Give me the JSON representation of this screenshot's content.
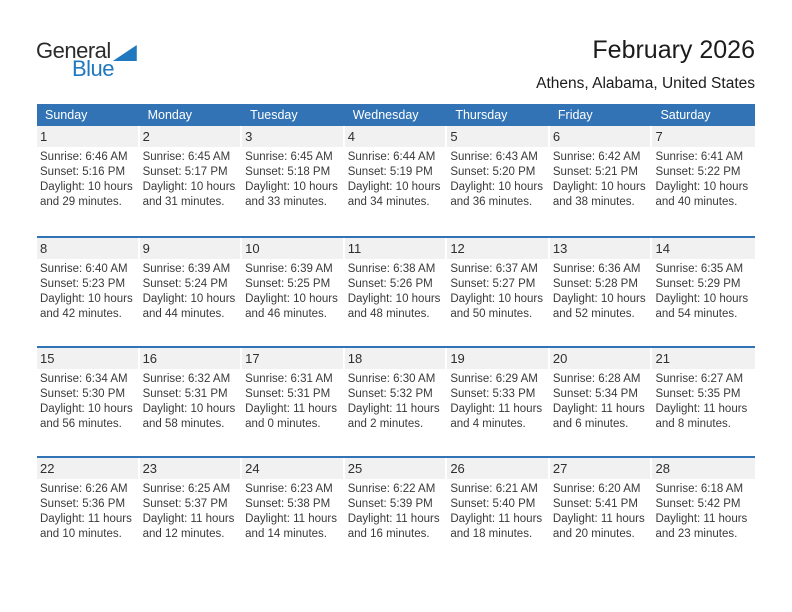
{
  "logo": {
    "text_general": "General",
    "text_blue": "Blue",
    "triangle_icon": "blue-right-triangle",
    "blue_color": "#2079BF",
    "dark_color": "#2B2B2B"
  },
  "header": {
    "title": "February 2026",
    "subtitle": "Athens, Alabama, United States"
  },
  "colors": {
    "header_blue": "#3273B5",
    "row_separator_blue": "#3273B5",
    "day_band_gray": "#F1F1F1",
    "body_text": "#3A3A3A"
  },
  "calendar": {
    "day_headers": [
      "Sunday",
      "Monday",
      "Tuesday",
      "Wednesday",
      "Thursday",
      "Friday",
      "Saturday"
    ],
    "weeks": [
      [
        {
          "day": "1",
          "sunrise": "Sunrise: 6:46 AM",
          "sunset": "Sunset: 5:16 PM",
          "daylight": "Daylight: 10 hours and 29 minutes."
        },
        {
          "day": "2",
          "sunrise": "Sunrise: 6:45 AM",
          "sunset": "Sunset: 5:17 PM",
          "daylight": "Daylight: 10 hours and 31 minutes."
        },
        {
          "day": "3",
          "sunrise": "Sunrise: 6:45 AM",
          "sunset": "Sunset: 5:18 PM",
          "daylight": "Daylight: 10 hours and 33 minutes."
        },
        {
          "day": "4",
          "sunrise": "Sunrise: 6:44 AM",
          "sunset": "Sunset: 5:19 PM",
          "daylight": "Daylight: 10 hours and 34 minutes."
        },
        {
          "day": "5",
          "sunrise": "Sunrise: 6:43 AM",
          "sunset": "Sunset: 5:20 PM",
          "daylight": "Daylight: 10 hours and 36 minutes."
        },
        {
          "day": "6",
          "sunrise": "Sunrise: 6:42 AM",
          "sunset": "Sunset: 5:21 PM",
          "daylight": "Daylight: 10 hours and 38 minutes."
        },
        {
          "day": "7",
          "sunrise": "Sunrise: 6:41 AM",
          "sunset": "Sunset: 5:22 PM",
          "daylight": "Daylight: 10 hours and 40 minutes."
        }
      ],
      [
        {
          "day": "8",
          "sunrise": "Sunrise: 6:40 AM",
          "sunset": "Sunset: 5:23 PM",
          "daylight": "Daylight: 10 hours and 42 minutes."
        },
        {
          "day": "9",
          "sunrise": "Sunrise: 6:39 AM",
          "sunset": "Sunset: 5:24 PM",
          "daylight": "Daylight: 10 hours and 44 minutes."
        },
        {
          "day": "10",
          "sunrise": "Sunrise: 6:39 AM",
          "sunset": "Sunset: 5:25 PM",
          "daylight": "Daylight: 10 hours and 46 minutes."
        },
        {
          "day": "11",
          "sunrise": "Sunrise: 6:38 AM",
          "sunset": "Sunset: 5:26 PM",
          "daylight": "Daylight: 10 hours and 48 minutes."
        },
        {
          "day": "12",
          "sunrise": "Sunrise: 6:37 AM",
          "sunset": "Sunset: 5:27 PM",
          "daylight": "Daylight: 10 hours and 50 minutes."
        },
        {
          "day": "13",
          "sunrise": "Sunrise: 6:36 AM",
          "sunset": "Sunset: 5:28 PM",
          "daylight": "Daylight: 10 hours and 52 minutes."
        },
        {
          "day": "14",
          "sunrise": "Sunrise: 6:35 AM",
          "sunset": "Sunset: 5:29 PM",
          "daylight": "Daylight: 10 hours and 54 minutes."
        }
      ],
      [
        {
          "day": "15",
          "sunrise": "Sunrise: 6:34 AM",
          "sunset": "Sunset: 5:30 PM",
          "daylight": "Daylight: 10 hours and 56 minutes."
        },
        {
          "day": "16",
          "sunrise": "Sunrise: 6:32 AM",
          "sunset": "Sunset: 5:31 PM",
          "daylight": "Daylight: 10 hours and 58 minutes."
        },
        {
          "day": "17",
          "sunrise": "Sunrise: 6:31 AM",
          "sunset": "Sunset: 5:31 PM",
          "daylight": "Daylight: 11 hours and 0 minutes."
        },
        {
          "day": "18",
          "sunrise": "Sunrise: 6:30 AM",
          "sunset": "Sunset: 5:32 PM",
          "daylight": "Daylight: 11 hours and 2 minutes."
        },
        {
          "day": "19",
          "sunrise": "Sunrise: 6:29 AM",
          "sunset": "Sunset: 5:33 PM",
          "daylight": "Daylight: 11 hours and 4 minutes."
        },
        {
          "day": "20",
          "sunrise": "Sunrise: 6:28 AM",
          "sunset": "Sunset: 5:34 PM",
          "daylight": "Daylight: 11 hours and 6 minutes."
        },
        {
          "day": "21",
          "sunrise": "Sunrise: 6:27 AM",
          "sunset": "Sunset: 5:35 PM",
          "daylight": "Daylight: 11 hours and 8 minutes."
        }
      ],
      [
        {
          "day": "22",
          "sunrise": "Sunrise: 6:26 AM",
          "sunset": "Sunset: 5:36 PM",
          "daylight": "Daylight: 11 hours and 10 minutes."
        },
        {
          "day": "23",
          "sunrise": "Sunrise: 6:25 AM",
          "sunset": "Sunset: 5:37 PM",
          "daylight": "Daylight: 11 hours and 12 minutes."
        },
        {
          "day": "24",
          "sunrise": "Sunrise: 6:23 AM",
          "sunset": "Sunset: 5:38 PM",
          "daylight": "Daylight: 11 hours and 14 minutes."
        },
        {
          "day": "25",
          "sunrise": "Sunrise: 6:22 AM",
          "sunset": "Sunset: 5:39 PM",
          "daylight": "Daylight: 11 hours and 16 minutes."
        },
        {
          "day": "26",
          "sunrise": "Sunrise: 6:21 AM",
          "sunset": "Sunset: 5:40 PM",
          "daylight": "Daylight: 11 hours and 18 minutes."
        },
        {
          "day": "27",
          "sunrise": "Sunrise: 6:20 AM",
          "sunset": "Sunset: 5:41 PM",
          "daylight": "Daylight: 11 hours and 20 minutes."
        },
        {
          "day": "28",
          "sunrise": "Sunrise: 6:18 AM",
          "sunset": "Sunset: 5:42 PM",
          "daylight": "Daylight: 11 hours and 23 minutes."
        }
      ]
    ]
  }
}
